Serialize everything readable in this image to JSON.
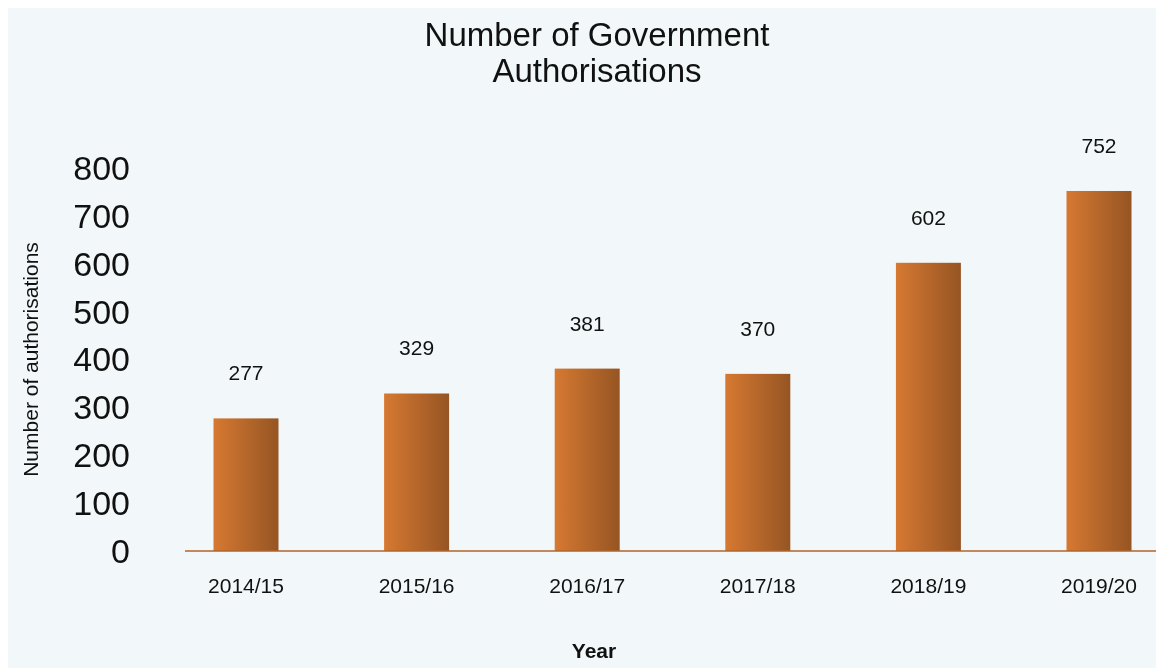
{
  "chart_data": {
    "type": "bar",
    "title": "Number of Government Authorisations",
    "xlabel": "Year",
    "ylabel": "Number of authorisations",
    "categories": [
      "2014/15",
      "2015/16",
      "2016/17",
      "2017/18",
      "2018/19",
      "2019/20"
    ],
    "values": [
      277,
      329,
      381,
      370,
      602,
      752
    ],
    "color": "#b3652a",
    "ylim": [
      0,
      800
    ],
    "yticks": [
      0,
      100,
      200,
      300,
      400,
      500,
      600,
      700,
      800
    ],
    "data_labels": true,
    "grid": false
  }
}
